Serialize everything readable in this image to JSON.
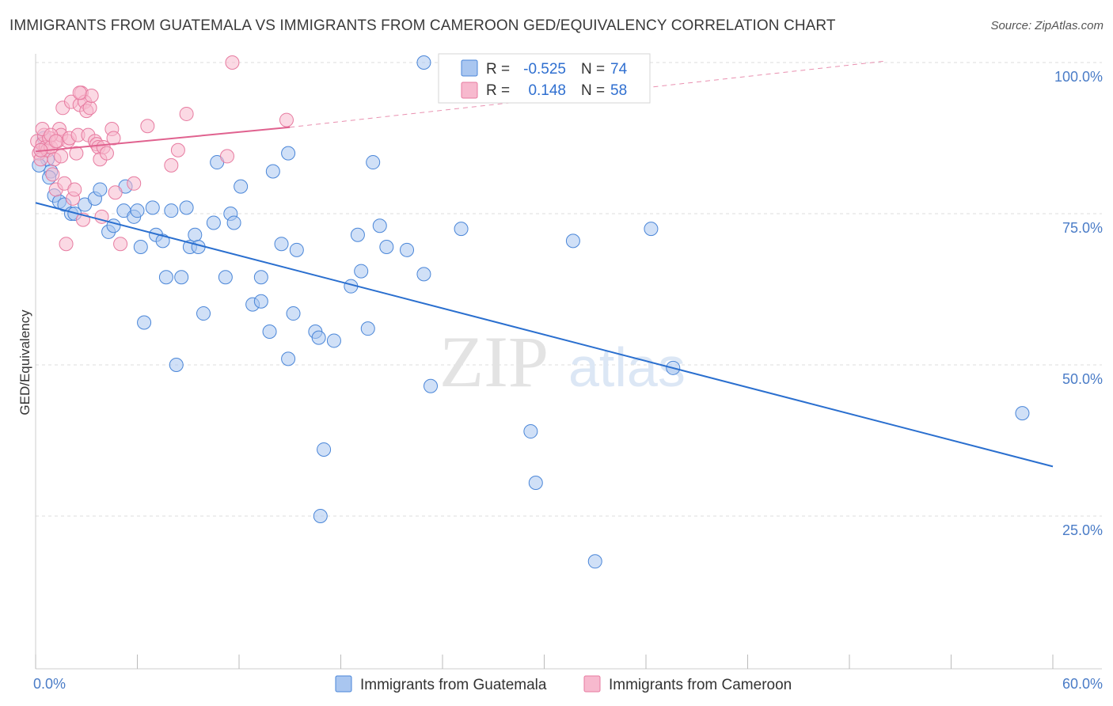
{
  "title": "IMMIGRANTS FROM GUATEMALA VS IMMIGRANTS FROM CAMEROON GED/EQUIVALENCY CORRELATION CHART",
  "source": "Source: ZipAtlas.com",
  "watermark": {
    "zip": "ZIP",
    "atlas": "atlas"
  },
  "legend": {
    "r_label": "R =",
    "n_label": "N =",
    "rows": [
      {
        "r": "-0.525",
        "n": "74"
      },
      {
        "r": "0.148",
        "n": "58"
      }
    ]
  },
  "colors": {
    "guatemala_fill": "#a9c6f0",
    "guatemala_stroke": "#4a86d8",
    "guatemala_line": "#2a6fcf",
    "cameroon_fill": "#f7b9ce",
    "cameroon_stroke": "#e77ba0",
    "cameroon_line": "#e0628f",
    "tick_text": "#4a7cc7",
    "grid": "#dddddd"
  },
  "chart_data": {
    "type": "scatter",
    "ylabel": "GED/Equivalency",
    "xlim": [
      0,
      60
    ],
    "ylim": [
      0,
      102
    ],
    "x_tick_labels": [
      {
        "value": 0,
        "label": "0.0%"
      },
      {
        "value": 60,
        "label": "60.0%"
      }
    ],
    "y_tick_labels": [
      {
        "value": 25,
        "label": "25.0%"
      },
      {
        "value": 50,
        "label": "50.0%"
      },
      {
        "value": 75,
        "label": "75.0%"
      },
      {
        "value": 100,
        "label": "100.0%"
      }
    ],
    "grid": true,
    "legend_position": "top-center",
    "series": [
      {
        "name": "Immigrants from Guatemala",
        "trend": {
          "x": [
            0,
            60
          ],
          "y": [
            76.8,
            33.2
          ]
        },
        "points": [
          [
            22.9,
            100.0
          ],
          [
            0.3,
            85.5
          ],
          [
            0.5,
            87.5
          ],
          [
            0.7,
            84.0
          ],
          [
            0.9,
            82.0
          ],
          [
            0.8,
            81.0
          ],
          [
            1.1,
            78.0
          ],
          [
            1.4,
            77.0
          ],
          [
            1.7,
            76.5
          ],
          [
            2.1,
            75.0
          ],
          [
            2.3,
            75.0
          ],
          [
            2.9,
            76.5
          ],
          [
            3.5,
            77.5
          ],
          [
            3.8,
            79.0
          ],
          [
            4.3,
            72.0
          ],
          [
            4.6,
            73.0
          ],
          [
            5.2,
            75.5
          ],
          [
            5.3,
            79.5
          ],
          [
            5.8,
            74.5
          ],
          [
            6.0,
            75.5
          ],
          [
            6.2,
            69.5
          ],
          [
            6.4,
            57.0
          ],
          [
            6.9,
            76.0
          ],
          [
            7.1,
            71.5
          ],
          [
            7.5,
            70.5
          ],
          [
            7.7,
            64.5
          ],
          [
            8.0,
            75.5
          ],
          [
            8.3,
            50.0
          ],
          [
            8.6,
            64.5
          ],
          [
            8.9,
            76.0
          ],
          [
            9.1,
            69.5
          ],
          [
            9.4,
            71.5
          ],
          [
            9.6,
            69.5
          ],
          [
            9.9,
            58.5
          ],
          [
            10.5,
            73.5
          ],
          [
            10.7,
            83.5
          ],
          [
            11.2,
            64.5
          ],
          [
            11.5,
            75.0
          ],
          [
            11.7,
            73.5
          ],
          [
            12.1,
            79.5
          ],
          [
            12.8,
            60.0
          ],
          [
            13.3,
            60.5
          ],
          [
            13.3,
            64.5
          ],
          [
            13.8,
            55.5
          ],
          [
            14.0,
            82.0
          ],
          [
            14.5,
            70.0
          ],
          [
            14.9,
            51.0
          ],
          [
            14.9,
            85.0
          ],
          [
            15.2,
            58.5
          ],
          [
            15.4,
            69.0
          ],
          [
            16.5,
            55.5
          ],
          [
            16.7,
            54.5
          ],
          [
            16.8,
            25.0
          ],
          [
            17.0,
            36.0
          ],
          [
            17.6,
            54.0
          ],
          [
            18.6,
            63.0
          ],
          [
            19.0,
            71.5
          ],
          [
            19.2,
            65.5
          ],
          [
            19.6,
            56.0
          ],
          [
            19.9,
            83.5
          ],
          [
            20.3,
            73.0
          ],
          [
            20.7,
            69.5
          ],
          [
            21.9,
            69.0
          ],
          [
            22.9,
            65.0
          ],
          [
            23.3,
            46.5
          ],
          [
            25.1,
            72.5
          ],
          [
            29.2,
            39.0
          ],
          [
            29.5,
            30.5
          ],
          [
            31.7,
            70.5
          ],
          [
            33.0,
            17.5
          ],
          [
            36.3,
            72.5
          ],
          [
            37.6,
            49.5
          ],
          [
            58.2,
            42.0
          ],
          [
            0.2,
            83.0
          ]
        ]
      },
      {
        "name": "Immigrants from Cameroon",
        "trend": {
          "x": [
            0,
            15.0
          ],
          "y": [
            85.3,
            89.3
          ]
        },
        "trend_dashed": {
          "x": [
            15.0,
            50.0
          ],
          "y": [
            89.3,
            100.2
          ]
        },
        "points": [
          [
            11.6,
            100.0
          ],
          [
            0.1,
            87.0
          ],
          [
            0.2,
            85.0
          ],
          [
            0.3,
            84.0
          ],
          [
            0.4,
            86.5
          ],
          [
            0.5,
            88.0
          ],
          [
            0.6,
            86.0
          ],
          [
            0.7,
            85.5
          ],
          [
            0.8,
            87.5
          ],
          [
            0.9,
            86.0
          ],
          [
            1.0,
            81.5
          ],
          [
            1.1,
            84.0
          ],
          [
            1.2,
            79.0
          ],
          [
            1.3,
            87.0
          ],
          [
            1.4,
            89.0
          ],
          [
            1.5,
            88.0
          ],
          [
            1.6,
            92.5
          ],
          [
            1.7,
            80.0
          ],
          [
            1.8,
            70.0
          ],
          [
            1.9,
            87.0
          ],
          [
            2.0,
            87.5
          ],
          [
            2.1,
            93.5
          ],
          [
            2.2,
            77.5
          ],
          [
            2.3,
            79.0
          ],
          [
            2.4,
            85.0
          ],
          [
            2.5,
            88.0
          ],
          [
            2.6,
            93.0
          ],
          [
            2.7,
            95.0
          ],
          [
            2.8,
            74.0
          ],
          [
            2.9,
            93.5
          ],
          [
            3.0,
            92.0
          ],
          [
            3.1,
            88.0
          ],
          [
            3.2,
            92.5
          ],
          [
            3.3,
            94.5
          ],
          [
            3.5,
            87.0
          ],
          [
            3.6,
            86.5
          ],
          [
            3.7,
            86.0
          ],
          [
            3.8,
            84.0
          ],
          [
            3.9,
            74.5
          ],
          [
            4.0,
            86.0
          ],
          [
            4.2,
            85.0
          ],
          [
            4.5,
            89.0
          ],
          [
            4.6,
            87.5
          ],
          [
            4.7,
            78.5
          ],
          [
            5.0,
            70.0
          ],
          [
            5.8,
            80.0
          ],
          [
            6.6,
            89.5
          ],
          [
            8.0,
            83.0
          ],
          [
            8.4,
            85.5
          ],
          [
            8.9,
            91.5
          ],
          [
            11.3,
            84.5
          ],
          [
            14.8,
            90.5
          ],
          [
            0.4,
            89.0
          ],
          [
            0.9,
            88.0
          ],
          [
            1.5,
            84.5
          ],
          [
            2.6,
            95.0
          ],
          [
            0.3,
            85.5
          ],
          [
            1.2,
            87.0
          ]
        ]
      }
    ]
  }
}
